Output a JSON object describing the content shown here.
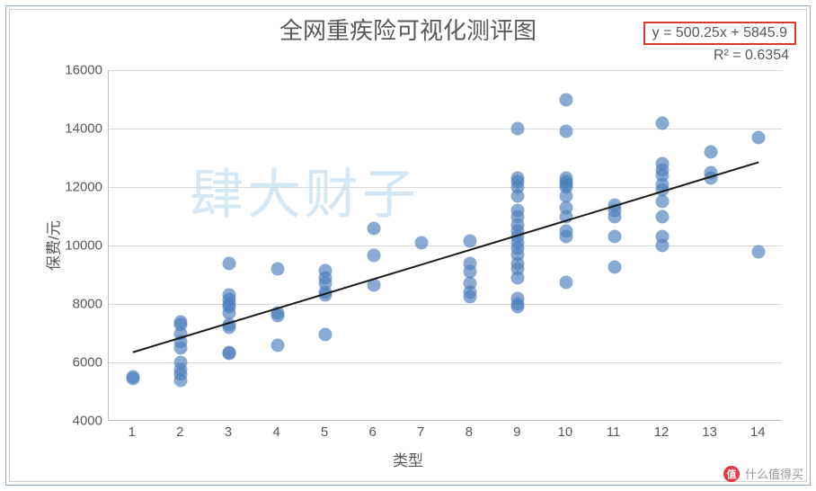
{
  "chart": {
    "type": "scatter",
    "title": "全网重疾险可视化测评图",
    "equation": "y = 500.25x + 5845.9",
    "r2": "R² = 0.6354",
    "xlabel": "类型",
    "ylabel": "保费/元",
    "xlim": [
      0.5,
      14.5
    ],
    "ylim": [
      4000,
      16000
    ],
    "xticks": [
      1,
      2,
      3,
      4,
      5,
      6,
      7,
      8,
      9,
      10,
      11,
      12,
      13,
      14
    ],
    "yticks": [
      4000,
      6000,
      8000,
      10000,
      12000,
      14000,
      16000
    ],
    "grid_color": "#d9d9d9",
    "axis_color": "#bfbfbf",
    "text_color": "#595959",
    "background_color": "#ffffff",
    "title_fontsize": 26,
    "label_fontsize": 17,
    "tick_fontsize": 15,
    "eq_fontsize": 16,
    "eq_border_color": "#d83a2b",
    "marker_color": "#4a7ebb",
    "marker_opacity": 0.65,
    "marker_size": 15,
    "trend_color": "#1a1a1a",
    "trend_width": 2,
    "watermark": "肆大财子",
    "watermark_color": "#c3ddf2",
    "watermark_fontsize": 60,
    "data": {
      "1": [
        5500,
        5450
      ],
      "2": [
        5400,
        5600,
        5750,
        6000,
        6500,
        6700,
        7000,
        7300,
        7400
      ],
      "3": [
        6300,
        6350,
        7200,
        7300,
        7700,
        7900,
        8000,
        8150,
        8300,
        9400
      ],
      "4": [
        6600,
        7600,
        7700,
        9200
      ],
      "5": [
        6950,
        8300,
        8400,
        8700,
        8900,
        9150
      ],
      "6": [
        8650,
        9650,
        10600
      ],
      "7": [
        10100
      ],
      "8": [
        8250,
        8400,
        8700,
        9100,
        9400,
        10150
      ],
      "9": [
        7900,
        8000,
        8200,
        8900,
        9200,
        9400,
        9700,
        9900,
        10100,
        10300,
        10500,
        10700,
        11000,
        11200,
        11700,
        12000,
        12200,
        12300,
        14000
      ],
      "10": [
        8750,
        10300,
        10500,
        11000,
        11300,
        11700,
        12000,
        12100,
        12200,
        12300,
        13900,
        15000
      ],
      "11": [
        9250,
        10300,
        11000,
        11200,
        11400
      ],
      "12": [
        10000,
        10300,
        11000,
        11500,
        11900,
        12100,
        12400,
        12600,
        12800,
        14200
      ],
      "13": [
        12300,
        12500,
        13200
      ],
      "14": [
        9800,
        13700
      ]
    },
    "outer_border_color": "#8ea9c4",
    "inner_border_color": "#cfcfcf"
  },
  "brand": {
    "label": "什么值得买",
    "icon": "值"
  }
}
